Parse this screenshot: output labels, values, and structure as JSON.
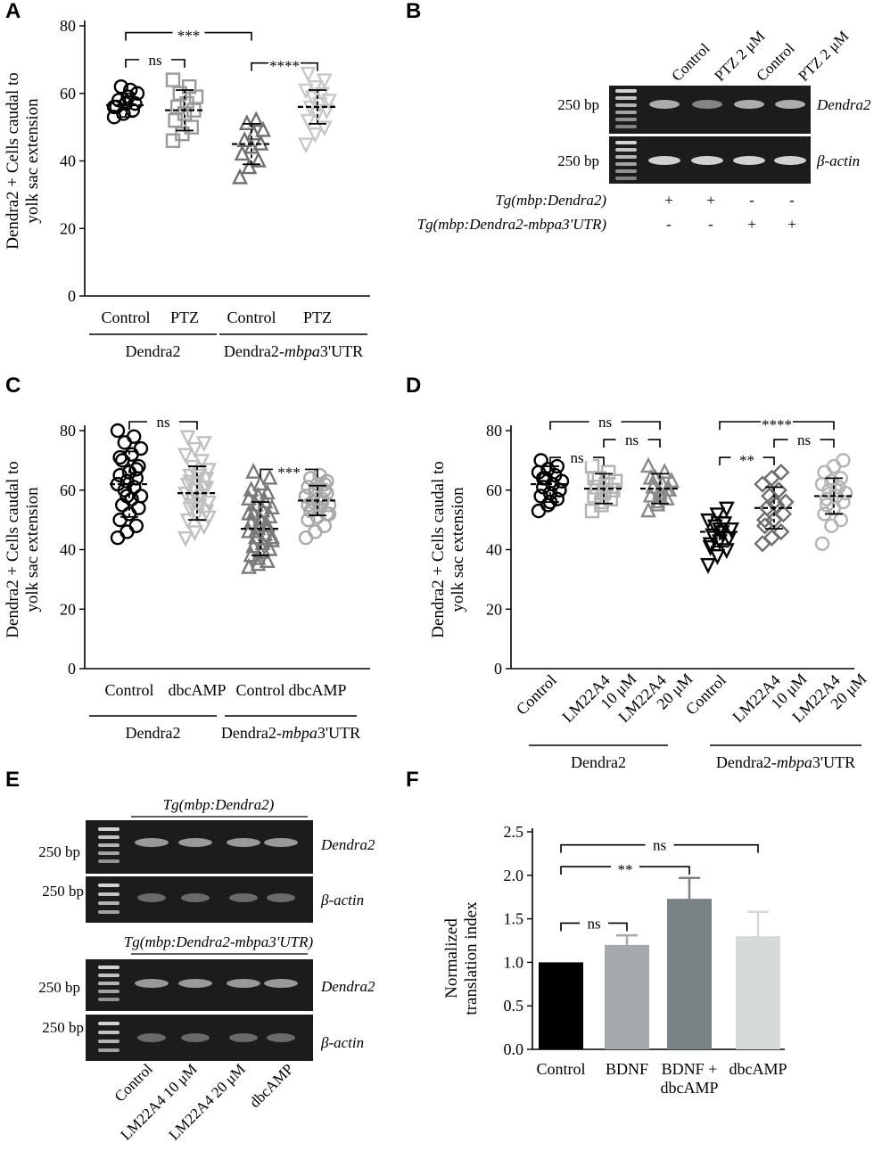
{
  "chart_data": [
    {
      "panel": "A",
      "type": "scatter",
      "ylabel": "Dendra2 + Cells caudal to yolk sac extension",
      "ylim": [
        0,
        80
      ],
      "yticks": [
        0,
        20,
        40,
        60,
        80
      ],
      "categories": [
        "Control",
        "PTZ",
        "Control",
        "PTZ"
      ],
      "groups": [
        "Dendra2",
        "Dendra2-mbpa3'UTR"
      ],
      "group_parts": [
        [
          "Dendra2"
        ],
        [
          "Dendra2-",
          "mbpa",
          "3'UTR"
        ]
      ],
      "series": [
        {
          "name": "Dendra2 Control",
          "marker": "circle",
          "color": "#000000",
          "mean": 56.5,
          "sd": 3.5,
          "values": [
            53,
            54,
            55,
            56,
            57,
            57,
            58,
            59,
            60,
            62,
            61,
            56
          ]
        },
        {
          "name": "Dendra2 PTZ",
          "marker": "square",
          "color": "#9a9a9a",
          "mean": 55,
          "sd": 6,
          "values": [
            46,
            48,
            50,
            52,
            54,
            55,
            56,
            57,
            59,
            60,
            62,
            64
          ]
        },
        {
          "name": "Dendra2-mbpa3'UTR Control",
          "marker": "triangle-up",
          "color": "#6f6f6f",
          "mean": 45,
          "sd": 6,
          "values": [
            35,
            38,
            40,
            42,
            44,
            45,
            46,
            48,
            49,
            51,
            52
          ]
        },
        {
          "name": "Dendra2-mbpa3'UTR PTZ",
          "marker": "triangle-down",
          "color": "#c8c8c8",
          "mean": 56,
          "sd": 5,
          "values": [
            45,
            48,
            50,
            52,
            54,
            55,
            56,
            57,
            58,
            59,
            60,
            61,
            62,
            64,
            66
          ]
        }
      ],
      "significance": [
        {
          "from": 0,
          "to": 1,
          "label": "ns",
          "value": 70
        },
        {
          "from": 0,
          "to": 2,
          "label": "***",
          "value": 78
        },
        {
          "from": 2,
          "to": 3,
          "label": "****",
          "value": 69
        }
      ]
    },
    {
      "panel": "C",
      "type": "scatter",
      "ylabel": "Dendra2 + Cells caudal to yolk sac extension",
      "ylim": [
        0,
        80
      ],
      "yticks": [
        0,
        20,
        40,
        60,
        80
      ],
      "categories": [
        "Control",
        "dbcAMP",
        "Control",
        "dbcAMP"
      ],
      "groups": [
        "Dendra2",
        "Dendra2-mbpa3'UTR"
      ],
      "group_parts": [
        [
          "Dendra2"
        ],
        [
          "Dendra2-",
          "mbpa",
          "3'UTR"
        ]
      ],
      "series": [
        {
          "name": "Dendra2 Control",
          "marker": "circle",
          "color": "#000000",
          "mean": 62,
          "sd": 11,
          "values": [
            44,
            46,
            48,
            50,
            52,
            54,
            55,
            57,
            58,
            60,
            61,
            62,
            63,
            64,
            65,
            66,
            68,
            70,
            72,
            74,
            76,
            78,
            80,
            58,
            67,
            71
          ]
        },
        {
          "name": "Dendra2 dbcAMP",
          "marker": "triangle-down",
          "color": "#c0c0c0",
          "mean": 59,
          "sd": 9,
          "values": [
            44,
            46,
            48,
            50,
            52,
            53,
            54,
            55,
            56,
            57,
            58,
            59,
            60,
            61,
            62,
            63,
            64,
            65,
            66,
            67,
            68,
            70,
            72,
            74,
            76,
            78,
            57,
            61,
            63,
            65,
            51,
            55
          ]
        },
        {
          "name": "Dendra2-mbpa3'UTR Control",
          "marker": "triangle-up",
          "color": "#7a7a7a",
          "mean": 47,
          "sd": 9,
          "values": [
            34,
            35,
            36,
            38,
            39,
            40,
            41,
            42,
            43,
            44,
            45,
            46,
            47,
            48,
            49,
            50,
            51,
            52,
            53,
            54,
            55,
            56,
            57,
            58,
            59,
            60,
            62,
            64,
            66,
            40,
            44,
            46,
            48,
            52,
            37
          ]
        },
        {
          "name": "Dendra2-mbpa3'UTR dbcAMP",
          "marker": "circle",
          "color": "#a8a8a8",
          "mean": 56.5,
          "sd": 5,
          "values": [
            44,
            46,
            48,
            50,
            51,
            52,
            53,
            54,
            55,
            56,
            57,
            58,
            59,
            60,
            61,
            62,
            63,
            64,
            65,
            52,
            54,
            56,
            58,
            60,
            62,
            55,
            57,
            59
          ]
        }
      ],
      "significance": [
        {
          "from": 0,
          "to": 1,
          "label": "ns",
          "value": 83
        },
        {
          "from": 2,
          "to": 3,
          "label": "***",
          "value": 67
        }
      ]
    },
    {
      "panel": "D",
      "type": "scatter",
      "ylabel": "Dendra2 + Cells caudal to yolk sac extension",
      "ylim": [
        0,
        80
      ],
      "yticks": [
        0,
        20,
        40,
        60,
        80
      ],
      "categories": [
        [
          "Control"
        ],
        [
          "LM22A4",
          "10 μM"
        ],
        [
          "LM22A4",
          "20 μM"
        ],
        [
          "Control"
        ],
        [
          "LM22A4",
          "10 μM"
        ],
        [
          "LM22A4",
          "20 μM"
        ]
      ],
      "groups": [
        "Dendra2",
        "Dendra2-mbpa3'UTR"
      ],
      "group_parts": [
        [
          "Dendra2"
        ],
        [
          "Dendra2-",
          "mbpa",
          "3'UTR"
        ]
      ],
      "series": [
        {
          "name": "Dendra2 Control",
          "marker": "circle",
          "color": "#000000",
          "mean": 62,
          "sd": 6,
          "values": [
            53,
            55,
            57,
            58,
            59,
            60,
            61,
            62,
            63,
            64,
            65,
            66,
            67,
            68,
            70,
            56,
            60,
            64
          ]
        },
        {
          "name": "Dendra2 LM22A4 10 μM",
          "marker": "square",
          "color": "#b4b4b4",
          "mean": 60.5,
          "sd": 5,
          "values": [
            53,
            55,
            57,
            58,
            59,
            60,
            61,
            62,
            63,
            64,
            66,
            68,
            56,
            60,
            64
          ]
        },
        {
          "name": "Dendra2 LM22A4 20 μM",
          "marker": "triangle-up",
          "color": "#8a8a8a",
          "mean": 60.5,
          "sd": 5,
          "values": [
            53,
            55,
            57,
            58,
            59,
            60,
            61,
            62,
            63,
            64,
            66,
            68,
            56,
            60,
            64,
            58
          ]
        },
        {
          "name": "Dendra2-mbpa3'UTR Control",
          "marker": "triangle-down",
          "color": "#000000",
          "mean": 46,
          "sd": 5,
          "values": [
            35,
            38,
            40,
            42,
            43,
            44,
            45,
            46,
            47,
            48,
            49,
            50,
            52,
            54,
            41,
            47
          ]
        },
        {
          "name": "Dendra2-mbpa3'UTR LM22A4 10 μM",
          "marker": "diamond",
          "color": "#6f6f6f",
          "mean": 54,
          "sd": 7,
          "values": [
            42,
            44,
            46,
            48,
            50,
            52,
            54,
            55,
            56,
            58,
            60,
            62,
            64,
            66,
            50,
            56
          ]
        },
        {
          "name": "Dendra2-mbpa3'UTR LM22A4 20 μM",
          "marker": "circle",
          "color": "#b4b4b4",
          "mean": 58,
          "sd": 6,
          "values": [
            42,
            48,
            50,
            52,
            54,
            56,
            57,
            58,
            59,
            60,
            61,
            62,
            63,
            64,
            66,
            68,
            70,
            55,
            60
          ]
        }
      ],
      "significance": [
        {
          "from": 0,
          "to": 1,
          "label": "ns",
          "value": 71
        },
        {
          "from": 0,
          "to": 2,
          "label": "ns",
          "value": 83
        },
        {
          "from": 1,
          "to": 2,
          "label": "ns",
          "value": 77
        },
        {
          "from": 3,
          "to": 4,
          "label": "**",
          "value": 71
        },
        {
          "from": 3,
          "to": 5,
          "label": "****",
          "value": 83
        },
        {
          "from": 4,
          "to": 5,
          "label": "ns",
          "value": 77
        }
      ]
    },
    {
      "panel": "F",
      "type": "bar",
      "ylabel": "Normalized translation index",
      "ylabel_lines": [
        "Normalized",
        "translation index"
      ],
      "ylim": [
        0,
        2.5
      ],
      "yticks": [
        "0.0",
        "0.5",
        "1.0",
        "1.5",
        "2.0",
        "2.5"
      ],
      "categories": [
        [
          "Control"
        ],
        [
          "BDNF"
        ],
        [
          "BDNF +",
          "dbcAMP"
        ],
        [
          "dbcAMP"
        ]
      ],
      "values": [
        1.0,
        1.2,
        1.73,
        1.3
      ],
      "errors": [
        0,
        0.11,
        0.24,
        0.28
      ],
      "colors": [
        "#000000",
        "#a4a9ac",
        "#7b8285",
        "#d6d9da"
      ],
      "significance": [
        {
          "from": 0,
          "to": 1,
          "label": "ns",
          "value": 1.45
        },
        {
          "from": 0,
          "to": 2,
          "label": "**",
          "value": 2.1
        },
        {
          "from": 0,
          "to": 3,
          "label": "ns",
          "value": 2.35
        }
      ]
    }
  ],
  "panel_labels": [
    "A",
    "B",
    "C",
    "D",
    "E",
    "F"
  ],
  "gel_b": {
    "lanes": [
      "Control",
      "PTZ 2 μM",
      "Control",
      "PTZ 2 μM"
    ],
    "size_label_1": "250 bp",
    "size_label_2": "250 bp",
    "band_1": "Dendra2",
    "band_2": "β-actin",
    "genotype_1": "Tg(mbp:Dendra2)",
    "genotype_2": "Tg(mbp:Dendra2-mbpa3'UTR)",
    "genotype_1_signs": [
      "+",
      "+",
      "-",
      "-"
    ],
    "genotype_2_signs": [
      "-",
      "-",
      "+",
      "+"
    ]
  },
  "gel_e": {
    "top_title": "Tg(mbp:Dendra2)",
    "bottom_title": "Tg(mbp:Dendra2-mbpa3'UTR)",
    "size_labels": [
      "250 bp",
      "250 bp",
      "250 bp",
      "250 bp"
    ],
    "bands": [
      "Dendra2",
      "β-actin",
      "Dendra2",
      "β-actin"
    ],
    "lanes": [
      "Control",
      "LM22A4 10 μM",
      "LM22A4 20 μM",
      "dbcAMP"
    ]
  },
  "colors": {
    "ink": "#000000",
    "gel_bg": "#1c1c1c",
    "band": "#dcdcdc"
  }
}
